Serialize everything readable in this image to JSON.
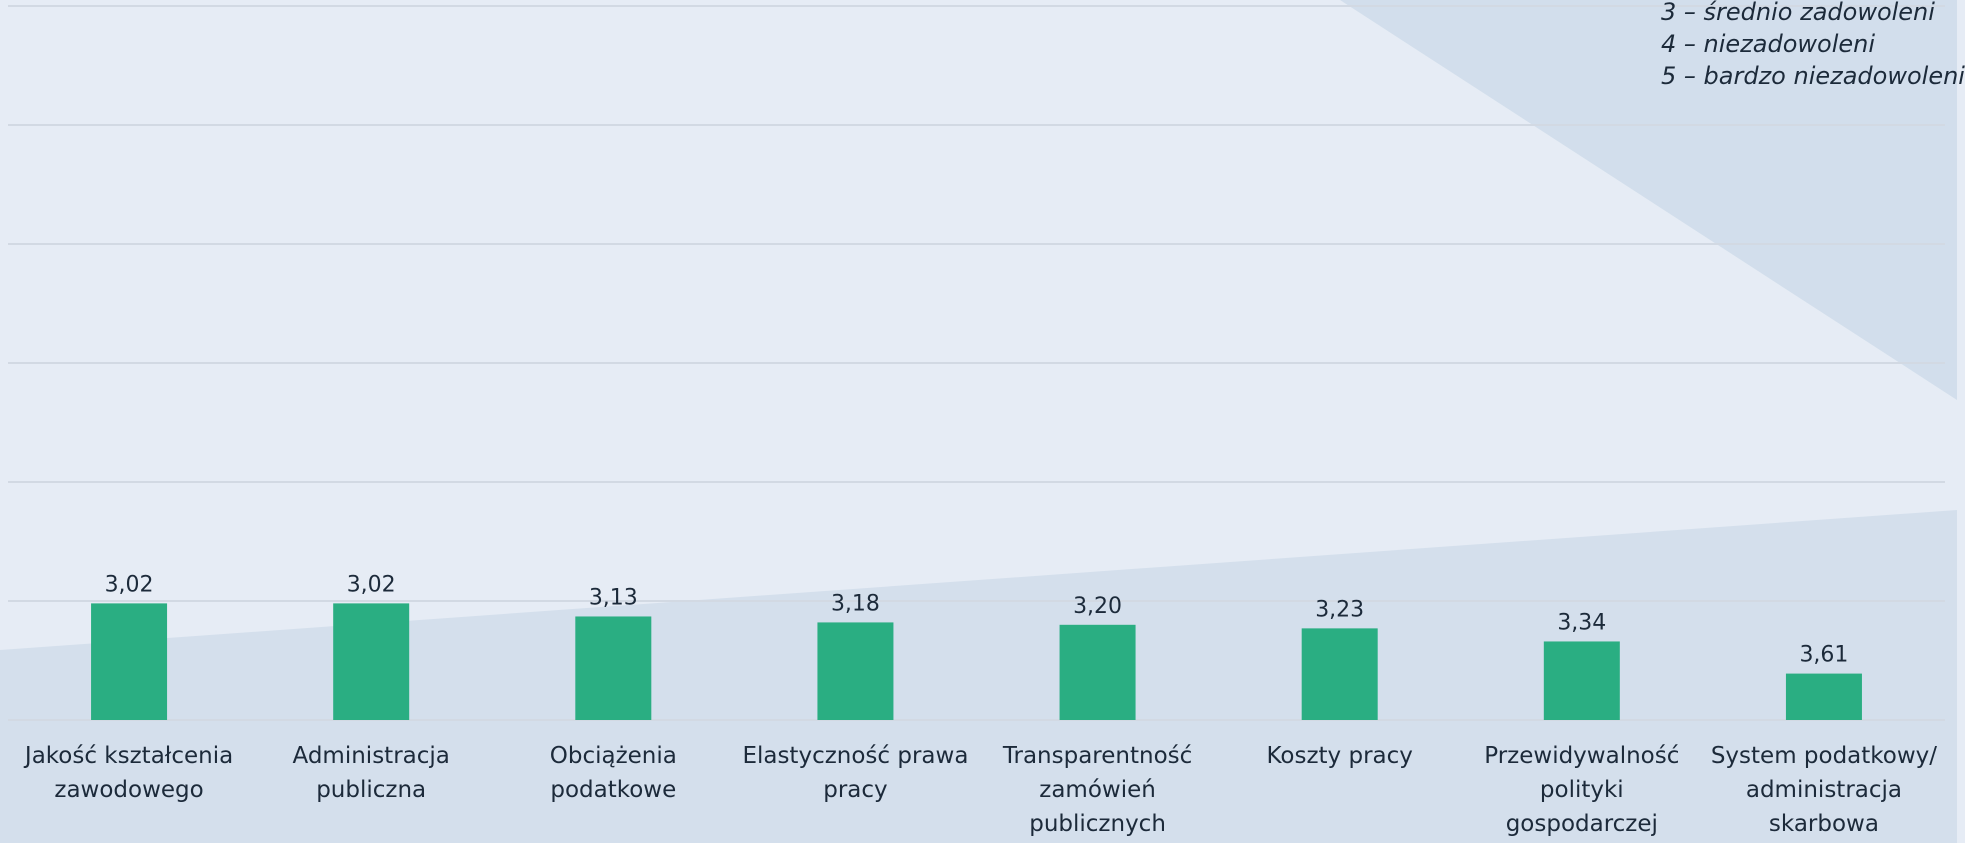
{
  "legend": {
    "items": [
      "3 – średnio zadowoleni",
      "4 – niezadowoleni",
      "5 – bardzo niezadowoleni"
    ]
  },
  "colors": {
    "bar": "#2aae82",
    "grid": "#d2d9e3",
    "text": "#1c2a3a"
  },
  "chart_data": {
    "type": "bar",
    "categories": [
      "Jakość kształcenia zawodowego",
      "Administracja publiczna",
      "Obciążenia podatkowe",
      "Elastyczność prawa pracy",
      "Transparentność zamówień publicznych",
      "Koszty pracy",
      "Przewidywalność polityki gospodarczej",
      "System podatkowy/ administracja skarbowa"
    ],
    "category_label_lines": [
      [
        "Jakość kształcenia",
        "zawodowego"
      ],
      [
        "Administracja",
        "publiczna"
      ],
      [
        "Obciążenia",
        "podatkowe"
      ],
      [
        "Elastyczność prawa",
        "pracy"
      ],
      [
        "Transparentność",
        "zamówień",
        "publicznych"
      ],
      [
        "Koszty pracy"
      ],
      [
        "Przewidywalność",
        "polityki",
        "gospodarczej"
      ],
      [
        "System podatkowy/",
        "administracja",
        "skarbowa"
      ]
    ],
    "values": [
      3.02,
      3.02,
      3.13,
      3.18,
      3.2,
      3.23,
      3.34,
      3.61
    ],
    "value_labels": [
      "3,02",
      "3,02",
      "3,13",
      "3,18",
      "3,20",
      "3,23",
      "3,34",
      "3,61"
    ],
    "axis": "reversed",
    "ylim": [
      4,
      1
    ],
    "grid": true,
    "title": "",
    "xlabel": "",
    "ylabel": ""
  }
}
